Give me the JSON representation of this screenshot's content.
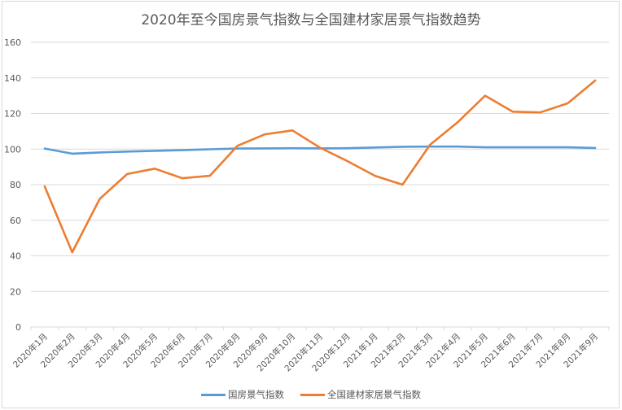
{
  "chart_data": {
    "type": "line",
    "title": "2020年至今国房景气指数与全国建材家居景气指数趋势",
    "xlabel": "",
    "ylabel": "",
    "ylim": [
      0,
      160
    ],
    "yticks": [
      0,
      20,
      40,
      60,
      80,
      100,
      120,
      140,
      160
    ],
    "grid": true,
    "legend_position": "bottom",
    "categories": [
      "2020年1月",
      "2020年2月",
      "2020年3月",
      "2020年4月",
      "2020年5月",
      "2020年6月",
      "2020年7月",
      "2020年8月",
      "2020年9月",
      "2020年10月",
      "2020年11月",
      "2020年12月",
      "2021年1月",
      "2021年2月",
      "2021年3月",
      "2021年4月",
      "2021年5月",
      "2021年6月",
      "2021年7月",
      "2021年8月",
      "2021年9月"
    ],
    "series": [
      {
        "name": "国房景气指数",
        "color": "#5B9BD5",
        "values": [
          100.3,
          97.4,
          98.1,
          98.6,
          99.0,
          99.4,
          99.9,
          100.3,
          100.4,
          100.5,
          100.4,
          100.5,
          100.9,
          101.3,
          101.4,
          101.4,
          101.0,
          101.0,
          101.0,
          101.0,
          100.6
        ]
      },
      {
        "name": "全国建材家居景气指数",
        "color": "#ED7D31",
        "values": [
          79.0,
          42.0,
          72.0,
          86.0,
          89.0,
          83.6,
          85.0,
          101.8,
          108.3,
          110.5,
          100.8,
          93.2,
          85.0,
          80.0,
          102.4,
          115.0,
          130.0,
          121.0,
          120.6,
          125.7,
          138.5
        ]
      }
    ]
  },
  "legend": {
    "items": [
      {
        "label": "国房景气指数",
        "color": "#5B9BD5"
      },
      {
        "label": "全国建材家居景气指数",
        "color": "#ED7D31"
      }
    ]
  }
}
